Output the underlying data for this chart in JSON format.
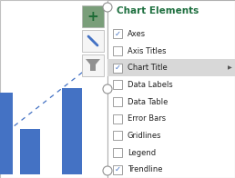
{
  "fig_w": 2.58,
  "fig_h": 1.96,
  "dpi": 100,
  "bg_color": "#ffffff",
  "bar_color": "#4472C4",
  "trendline_color": "#4472C4",
  "panel_title": "Chart Elements",
  "panel_title_color": "#1f7040",
  "panel_bg": "#ffffff",
  "panel_border": "#b0b0b0",
  "highlight_color": "#d8d8d8",
  "check_color": "#4472C4",
  "arrow_color": "#555555",
  "handle_stroke": "#909090",
  "btn_plus_bg": "#7a9e7a",
  "btn_plus_fg": "#1d6b35",
  "btn_light_bg": "#f5f5f5",
  "btn_border": "#b0b0b0",
  "items": [
    {
      "label": "Axes",
      "checked": true,
      "highlighted": false
    },
    {
      "label": "Axis Titles",
      "checked": false,
      "highlighted": false
    },
    {
      "label": "Chart Title",
      "checked": true,
      "highlighted": true
    },
    {
      "label": "Data Labels",
      "checked": false,
      "highlighted": false
    },
    {
      "label": "Data Table",
      "checked": false,
      "highlighted": false
    },
    {
      "label": "Error Bars",
      "checked": false,
      "highlighted": false
    },
    {
      "label": "Gridlines",
      "checked": false,
      "highlighted": false
    },
    {
      "label": "Legend",
      "checked": false,
      "highlighted": false
    },
    {
      "label": "Trendline",
      "checked": true,
      "highlighted": false
    }
  ]
}
